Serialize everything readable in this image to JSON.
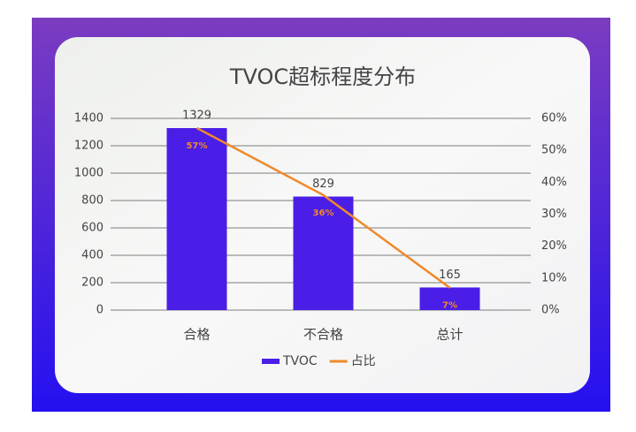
{
  "chart_data": {
    "type": "combo",
    "title": "TVOC超标程度分布",
    "categories": [
      "合格",
      "不合格",
      "总计"
    ],
    "series": [
      {
        "name": "TVOC",
        "type": "bar",
        "color": "#4a1ee6",
        "values": [
          1329,
          829,
          165
        ]
      },
      {
        "name": "占比",
        "type": "line",
        "axis": "y2",
        "color": "#f0892a",
        "values": [
          57,
          36,
          7
        ],
        "value_labels": [
          "57%",
          "36%",
          "7%"
        ]
      }
    ],
    "ylim": [
      0,
      1400
    ],
    "yticks": [
      0,
      200,
      400,
      600,
      800,
      1000,
      1200,
      1400
    ],
    "y2lim": [
      0,
      60
    ],
    "y2ticks": [
      {
        "value": 0,
        "label": "0%"
      },
      {
        "value": 10,
        "label": "10%"
      },
      {
        "value": 20,
        "label": "20%"
      },
      {
        "value": 30,
        "label": "30%"
      },
      {
        "value": 40,
        "label": "40%"
      },
      {
        "value": 50,
        "label": "50%"
      },
      {
        "value": 60,
        "label": "60%"
      }
    ],
    "grid": true,
    "legend": "bottom"
  }
}
